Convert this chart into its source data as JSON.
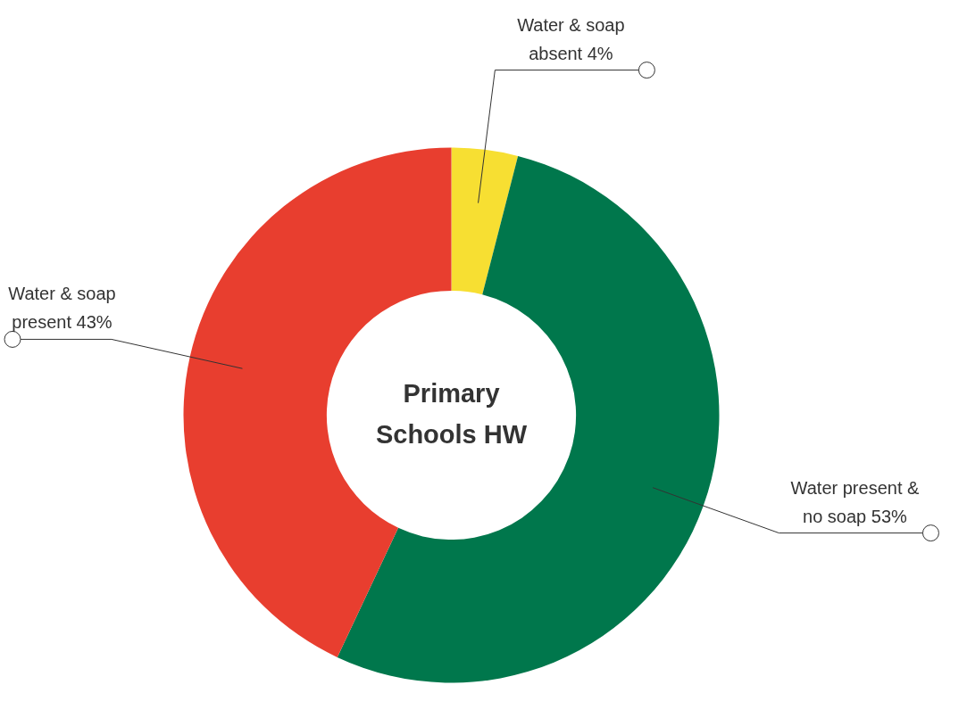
{
  "chart_data": {
    "type": "donut",
    "title": "Primary Schools HW",
    "categories": [
      "Water & soap absent",
      "Water present & no soap",
      "Water & soap present"
    ],
    "values": [
      4,
      53,
      43
    ],
    "colors": [
      "#f7df32",
      "#00774c",
      "#e83e2f"
    ],
    "value_labels": [
      "4%",
      "53%",
      "43%"
    ],
    "legend": false
  }
}
